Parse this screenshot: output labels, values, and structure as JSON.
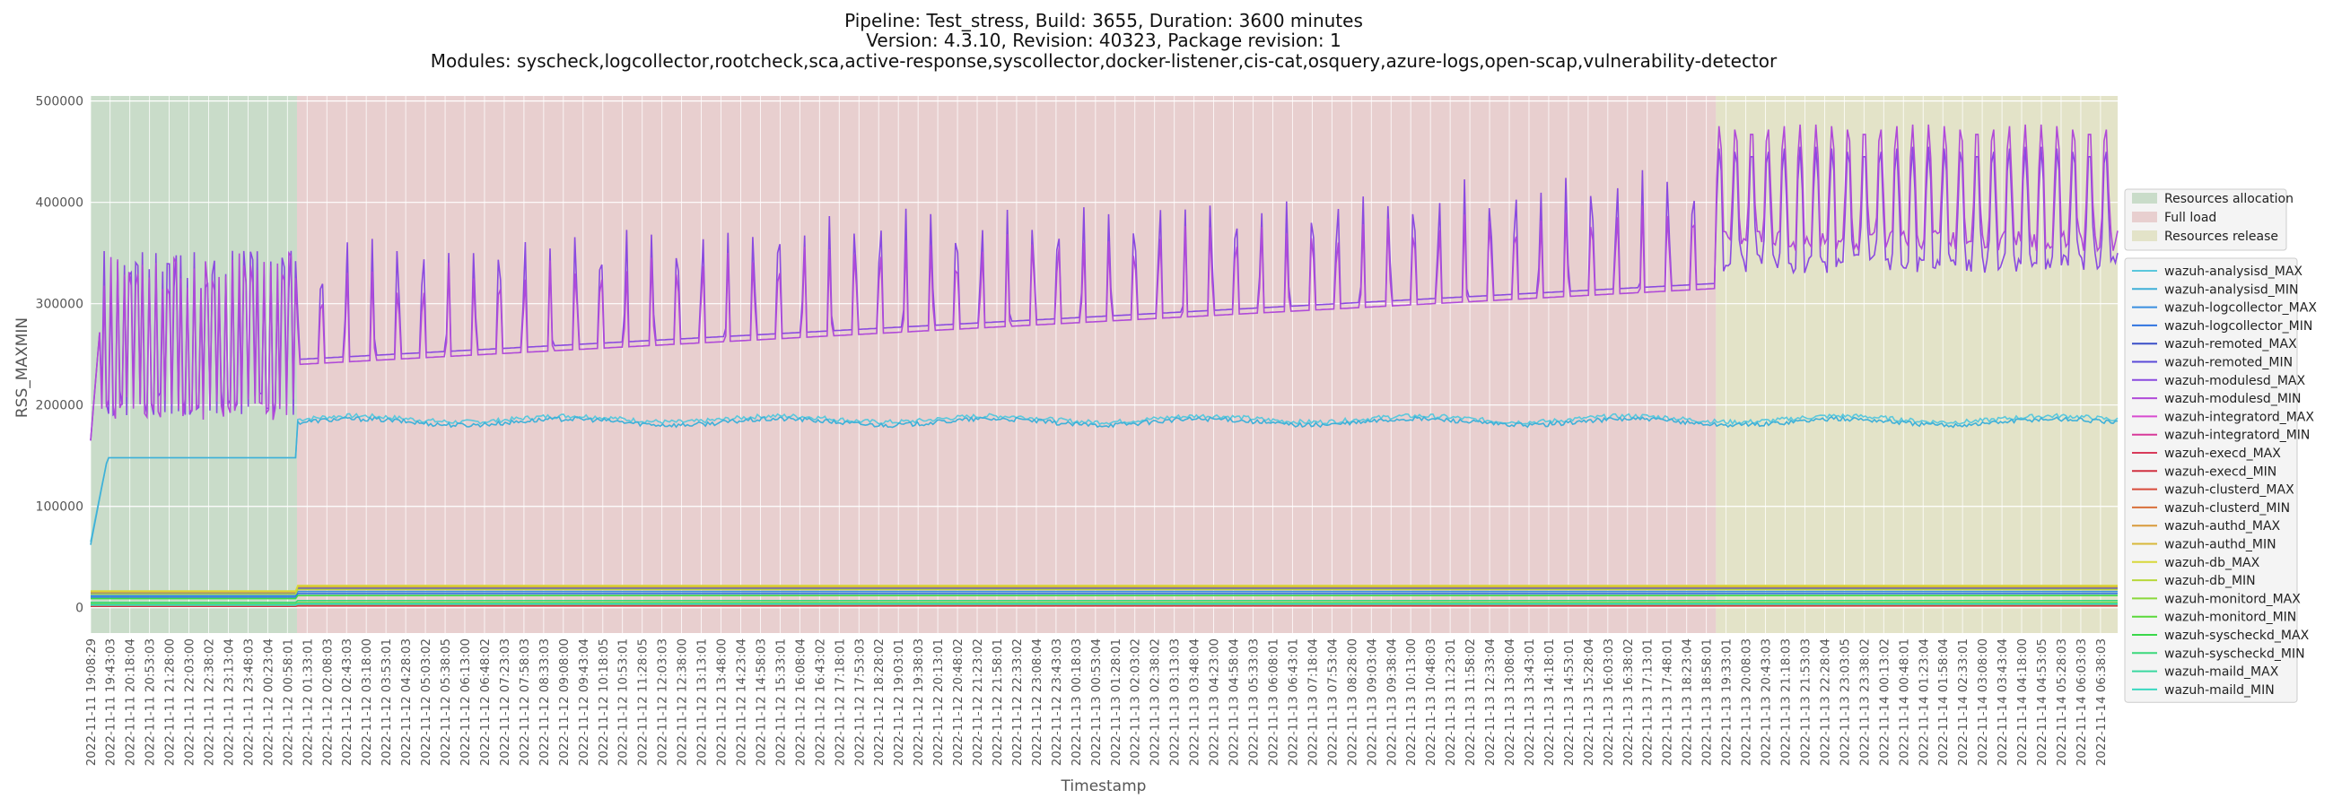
{
  "chart_data": {
    "type": "line",
    "title_lines": [
      "Pipeline: Test_stress, Build: 3655, Duration: 3600 minutes",
      "Version: 4.3.10, Revision: 40323, Package revision: 1",
      "Modules: syscheck,logcollector,rootcheck,sca,active-response,syscollector,docker-listener,cis-cat,osquery,azure-logs,open-scap,vulnerability-detector"
    ],
    "xlabel": "Timestamp",
    "ylabel": "RSS_MAXMIN",
    "ylim": [
      -25000,
      505000
    ],
    "yticks": [
      0,
      100000,
      200000,
      300000,
      400000,
      500000
    ],
    "grid": true,
    "legend_placement": "right",
    "x_start": "2022-11-11 19:08:29",
    "x_end": "2022-11-14 07:08:29",
    "xtick_labels": [
      "2022-11-11 19:08:29",
      "2022-11-11 19:43:03",
      "2022-11-11 20:18:04",
      "2022-11-11 20:53:03",
      "2022-11-11 21:28:00",
      "2022-11-11 22:03:00",
      "2022-11-11 22:38:02",
      "2022-11-11 23:13:04",
      "2022-11-11 23:48:03",
      "2022-11-12 00:23:04",
      "2022-11-12 00:58:01",
      "2022-11-12 01:33:01",
      "2022-11-12 02:08:03",
      "2022-11-12 02:43:03",
      "2022-11-12 03:18:00",
      "2022-11-12 03:53:01",
      "2022-11-12 04:28:03",
      "2022-11-12 05:03:02",
      "2022-11-12 05:38:05",
      "2022-11-12 06:13:00",
      "2022-11-12 06:48:02",
      "2022-11-12 07:23:03",
      "2022-11-12 07:58:03",
      "2022-11-12 08:33:03",
      "2022-11-12 09:08:00",
      "2022-11-12 09:43:04",
      "2022-11-12 10:18:05",
      "2022-11-12 10:53:01",
      "2022-11-12 11:28:05",
      "2022-11-12 12:03:03",
      "2022-11-12 12:38:00",
      "2022-11-12 13:13:01",
      "2022-11-12 13:48:00",
      "2022-11-12 14:23:04",
      "2022-11-12 14:58:03",
      "2022-11-12 15:33:01",
      "2022-11-12 16:08:04",
      "2022-11-12 16:43:02",
      "2022-11-12 17:18:01",
      "2022-11-12 17:53:03",
      "2022-11-12 18:28:02",
      "2022-11-12 19:03:01",
      "2022-11-12 19:38:03",
      "2022-11-12 20:13:01",
      "2022-11-12 20:48:02",
      "2022-11-12 21:23:02",
      "2022-11-12 21:58:01",
      "2022-11-12 22:33:02",
      "2022-11-12 23:08:04",
      "2022-11-12 23:43:03",
      "2022-11-13 00:18:03",
      "2022-11-13 00:53:04",
      "2022-11-13 01:28:01",
      "2022-11-13 02:03:02",
      "2022-11-13 02:38:02",
      "2022-11-13 03:13:03",
      "2022-11-13 03:48:04",
      "2022-11-13 04:23:00",
      "2022-11-13 04:58:04",
      "2022-11-13 05:33:03",
      "2022-11-13 06:08:01",
      "2022-11-13 06:43:01",
      "2022-11-13 07:18:04",
      "2022-11-13 07:53:04",
      "2022-11-13 08:28:00",
      "2022-11-13 09:03:04",
      "2022-11-13 09:38:04",
      "2022-11-13 10:13:00",
      "2022-11-13 10:48:03",
      "2022-11-13 11:23:01",
      "2022-11-13 11:58:02",
      "2022-11-13 12:33:04",
      "2022-11-13 13:08:04",
      "2022-11-13 13:43:01",
      "2022-11-13 14:18:01",
      "2022-11-13 14:53:01",
      "2022-11-13 15:28:04",
      "2022-11-13 16:03:03",
      "2022-11-13 16:38:02",
      "2022-11-13 17:13:01",
      "2022-11-13 17:48:01",
      "2022-11-13 18:23:04",
      "2022-11-13 18:58:01",
      "2022-11-13 19:33:01",
      "2022-11-13 20:08:03",
      "2022-11-13 20:43:03",
      "2022-11-13 21:18:03",
      "2022-11-13 21:53:03",
      "2022-11-13 22:28:04",
      "2022-11-13 23:03:05",
      "2022-11-13 23:38:02",
      "2022-11-14 00:13:02",
      "2022-11-14 00:48:01",
      "2022-11-14 01:23:04",
      "2022-11-14 01:58:04",
      "2022-11-14 02:33:01",
      "2022-11-14 03:08:00",
      "2022-11-14 03:43:04",
      "2022-11-14 04:18:00",
      "2022-11-14 04:53:05",
      "2022-11-14 05:28:03",
      "2022-11-14 06:03:03",
      "2022-11-14 06:38:03"
    ],
    "phases": [
      {
        "name": "Resources allocation",
        "start": "2022-11-11 19:08:29",
        "end": "2022-11-12 01:15:00",
        "color": "#c9dcc9"
      },
      {
        "name": "Full load",
        "start": "2022-11-12 01:15:00",
        "end": "2022-11-13 19:15:00",
        "color": "#e8cfcf"
      },
      {
        "name": "Resources release",
        "start": "2022-11-13 19:15:00",
        "end": "2022-11-14 07:08:29",
        "color": "#e3e3c8"
      }
    ],
    "series": [
      {
        "name": "wazuh-analysisd_MAX",
        "color": "#5bc8dc",
        "level": 190000,
        "min": 65000
      },
      {
        "name": "wazuh-analysisd_MIN",
        "color": "#3fb0d8",
        "level": 187000,
        "min": 62000
      },
      {
        "name": "wazuh-logcollector_MAX",
        "color": "#3a8fe0",
        "level": 16000
      },
      {
        "name": "wazuh-logcollector_MIN",
        "color": "#2f74e0",
        "level": 14000
      },
      {
        "name": "wazuh-remoted_MAX",
        "color": "#3a4fc8",
        "level": 20000
      },
      {
        "name": "wazuh-remoted_MIN",
        "color": "#5a4ad8",
        "level": 19000
      },
      {
        "name": "wazuh-modulesd_MAX",
        "color": "#8a4ae0",
        "min": 165000,
        "max": 480000
      },
      {
        "name": "wazuh-modulesd_MIN",
        "color": "#b04ad8",
        "min": 160000,
        "max": 375000
      },
      {
        "name": "wazuh-integratord_MAX",
        "color": "#d84ad0",
        "level": 3000
      },
      {
        "name": "wazuh-integratord_MIN",
        "color": "#d83a9a",
        "level": 2500
      },
      {
        "name": "wazuh-execd_MAX",
        "color": "#d83a5a",
        "level": 2000
      },
      {
        "name": "wazuh-execd_MIN",
        "color": "#d03040",
        "level": 1800
      },
      {
        "name": "wazuh-clusterd_MAX",
        "color": "#d84a3a",
        "level": 3500
      },
      {
        "name": "wazuh-clusterd_MIN",
        "color": "#d8703a",
        "level": 3000
      },
      {
        "name": "wazuh-authd_MAX",
        "color": "#d89a3a",
        "level": 21000
      },
      {
        "name": "wazuh-authd_MIN",
        "color": "#d8b83a",
        "level": 20500
      },
      {
        "name": "wazuh-db_MAX",
        "color": "#d8d83a",
        "level": 22000
      },
      {
        "name": "wazuh-db_MIN",
        "color": "#b8d83a",
        "level": 18000
      },
      {
        "name": "wazuh-monitord_MAX",
        "color": "#8ad83a",
        "level": 5000
      },
      {
        "name": "wazuh-monitord_MIN",
        "color": "#5ad83a",
        "level": 4500
      },
      {
        "name": "wazuh-syscheckd_MAX",
        "color": "#3ad84a",
        "level": 12000
      },
      {
        "name": "wazuh-syscheckd_MIN",
        "color": "#3ad87a",
        "level": 7000
      },
      {
        "name": "wazuh-maild_MAX",
        "color": "#3ad8a0",
        "level": 4000
      },
      {
        "name": "wazuh-maild_MIN",
        "color": "#3ad8c0",
        "level": 3500
      }
    ]
  }
}
